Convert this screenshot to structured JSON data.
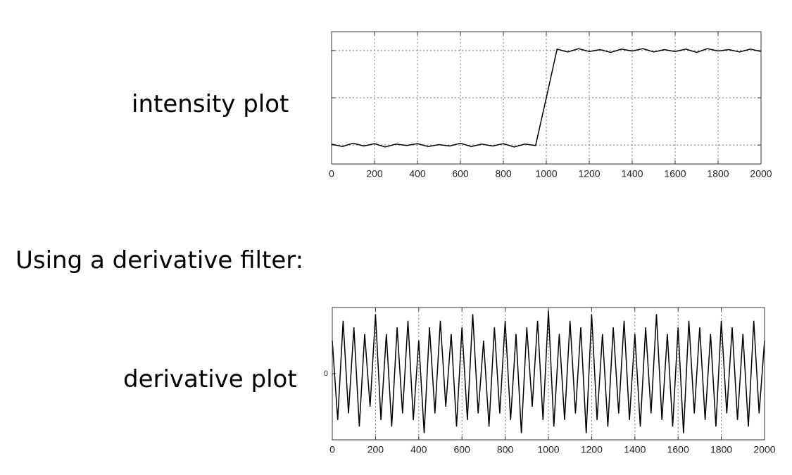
{
  "heading": "Using a derivative filter:",
  "chart_data": [
    {
      "type": "line",
      "side_label": "intensity plot",
      "color": "#000000",
      "x": [
        0,
        50,
        100,
        150,
        200,
        250,
        300,
        350,
        400,
        450,
        500,
        550,
        600,
        650,
        700,
        750,
        800,
        850,
        900,
        950,
        1000,
        1050,
        1100,
        1150,
        1200,
        1250,
        1300,
        1350,
        1400,
        1450,
        1500,
        1550,
        1600,
        1650,
        1700,
        1750,
        1800,
        1850,
        1900,
        1950,
        2000
      ],
      "values": [
        0.02,
        -0.03,
        0.04,
        -0.02,
        0.03,
        -0.04,
        0.02,
        -0.01,
        0.03,
        -0.03,
        0.01,
        -0.02,
        0.04,
        -0.03,
        0.02,
        -0.02,
        0.03,
        -0.04,
        0.02,
        -0.01,
        1.0,
        2.03,
        1.97,
        2.04,
        1.98,
        2.02,
        1.96,
        2.03,
        1.99,
        2.04,
        1.97,
        2.02,
        1.98,
        2.03,
        1.96,
        2.04,
        1.99,
        2.02,
        1.97,
        2.03,
        1.98
      ],
      "xlim": [
        0,
        2000
      ],
      "xticks": [
        0,
        200,
        400,
        600,
        800,
        1000,
        1200,
        1400,
        1600,
        1800,
        2000
      ],
      "ylim": [
        -0.4,
        2.4
      ],
      "ygrid": [
        0,
        1,
        2
      ],
      "grid": true
    },
    {
      "type": "line",
      "side_label": "derivative plot",
      "color": "#000000",
      "x": [
        0,
        25,
        50,
        75,
        100,
        125,
        150,
        175,
        200,
        225,
        250,
        275,
        300,
        325,
        350,
        375,
        400,
        425,
        450,
        475,
        500,
        525,
        550,
        575,
        600,
        625,
        650,
        675,
        700,
        725,
        750,
        775,
        800,
        825,
        850,
        875,
        900,
        925,
        950,
        975,
        1000,
        1025,
        1050,
        1075,
        1100,
        1125,
        1150,
        1175,
        1200,
        1225,
        1250,
        1275,
        1300,
        1325,
        1350,
        1375,
        1400,
        1425,
        1450,
        1475,
        1500,
        1525,
        1550,
        1575,
        1600,
        1625,
        1650,
        1675,
        1700,
        1725,
        1750,
        1775,
        1800,
        1825,
        1850,
        1875,
        1900,
        1925,
        1950,
        1975,
        2000
      ],
      "values": [
        0.5,
        -0.7,
        0.8,
        -0.6,
        0.7,
        -0.8,
        0.6,
        -0.5,
        0.9,
        -0.7,
        0.6,
        -0.8,
        0.7,
        -0.6,
        0.8,
        -0.7,
        0.5,
        -0.9,
        0.7,
        -0.6,
        0.8,
        -0.5,
        0.6,
        -0.8,
        0.7,
        -0.7,
        0.9,
        -0.6,
        0.5,
        -0.8,
        0.7,
        -0.6,
        0.8,
        -0.7,
        0.6,
        -0.9,
        0.7,
        -0.5,
        0.8,
        -0.7,
        0.95,
        -0.8,
        0.6,
        -0.7,
        0.8,
        -0.6,
        0.7,
        -0.9,
        0.9,
        -0.7,
        0.6,
        -0.8,
        0.7,
        -0.6,
        0.8,
        -0.7,
        0.6,
        -0.8,
        0.7,
        -0.6,
        0.9,
        -0.7,
        0.6,
        -0.8,
        0.7,
        -0.9,
        0.8,
        -0.6,
        0.7,
        -0.7,
        0.6,
        -0.8,
        0.8,
        -0.6,
        0.7,
        -0.7,
        0.6,
        -0.8,
        0.8,
        -0.6,
        0.5
      ],
      "xlim": [
        0,
        2000
      ],
      "xticks": [
        0,
        200,
        400,
        600,
        800,
        1000,
        1200,
        1400,
        1600,
        1800,
        2000
      ],
      "ylim": [
        -1,
        1
      ],
      "yticks": [
        0
      ],
      "grid": true
    }
  ]
}
